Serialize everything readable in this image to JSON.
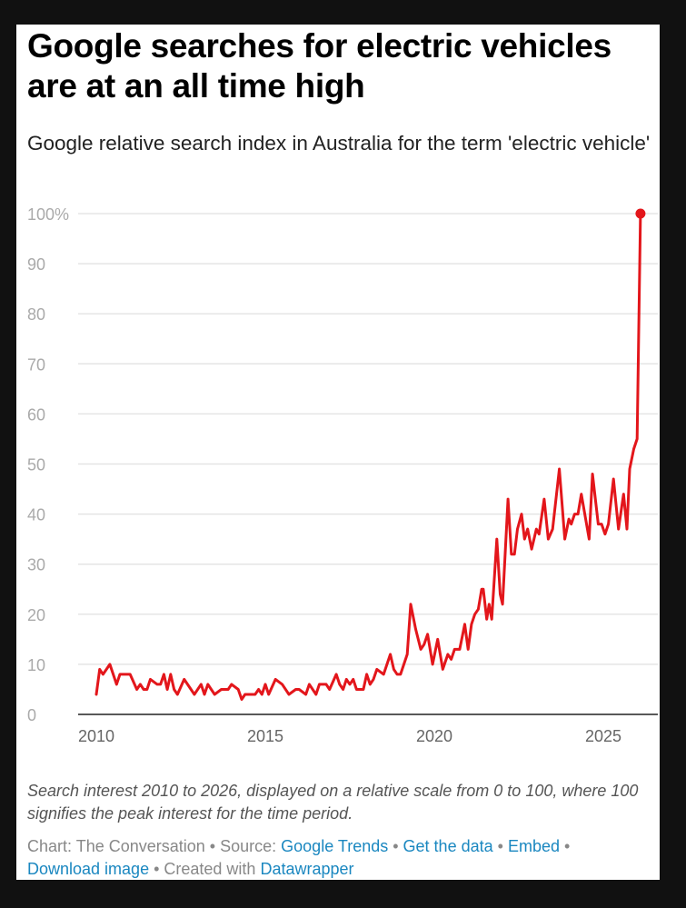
{
  "title": "Google searches for electric vehicles are at an all time high",
  "subtitle": "Google relative search index in Australia for the term 'electric vehicle'",
  "note": "Search interest 2010 to 2026, displayed on a relative scale from 0 to 100, where 100 signifies the peak interest for the time period.",
  "footer": {
    "chart_credit": "Chart: The Conversation",
    "source_label": "Source:",
    "source_link": "Google Trends",
    "get_data": "Get the data",
    "embed": "Embed",
    "download": "Download image",
    "created_with": "Created with",
    "datawrapper": "Datawrapper",
    "sep": " • "
  },
  "colors": {
    "line": "#e3161b",
    "grid": "#e5e5e5",
    "axis": "#222222",
    "tick": "#aaaaaa",
    "link": "#1a87c0"
  },
  "chart_data": {
    "type": "line",
    "title": "Google searches for electric vehicles are at an all time high",
    "xlabel": "",
    "ylabel": "",
    "xlim": [
      2010,
      2026.2
    ],
    "ylim": [
      0,
      100
    ],
    "y_ticks": [
      0,
      10,
      20,
      30,
      40,
      50,
      60,
      70,
      80,
      90,
      100
    ],
    "y_tick_labels": [
      "0",
      "10",
      "20",
      "30",
      "40",
      "50",
      "60",
      "70",
      "80",
      "90",
      "100%"
    ],
    "x_ticks": [
      2010,
      2015,
      2020,
      2025
    ],
    "x_tick_labels": [
      "2010",
      "2015",
      "2020",
      "2025"
    ],
    "grid": true,
    "series": [
      {
        "name": "electric vehicle",
        "points": [
          [
            2010.0,
            4
          ],
          [
            2010.1,
            9
          ],
          [
            2010.2,
            8
          ],
          [
            2010.4,
            10
          ],
          [
            2010.6,
            6
          ],
          [
            2010.7,
            8
          ],
          [
            2011.0,
            8
          ],
          [
            2011.2,
            5
          ],
          [
            2011.3,
            6
          ],
          [
            2011.4,
            5
          ],
          [
            2011.5,
            5
          ],
          [
            2011.6,
            7
          ],
          [
            2011.8,
            6
          ],
          [
            2011.9,
            6
          ],
          [
            2012.0,
            8
          ],
          [
            2012.1,
            5
          ],
          [
            2012.2,
            8
          ],
          [
            2012.3,
            5
          ],
          [
            2012.4,
            4
          ],
          [
            2012.6,
            7
          ],
          [
            2012.8,
            5
          ],
          [
            2012.9,
            4
          ],
          [
            2013.1,
            6
          ],
          [
            2013.2,
            4
          ],
          [
            2013.3,
            6
          ],
          [
            2013.4,
            5
          ],
          [
            2013.5,
            4
          ],
          [
            2013.7,
            5
          ],
          [
            2013.9,
            5
          ],
          [
            2014.0,
            6
          ],
          [
            2014.2,
            5
          ],
          [
            2014.3,
            3
          ],
          [
            2014.4,
            4
          ],
          [
            2014.7,
            4
          ],
          [
            2014.8,
            5
          ],
          [
            2014.9,
            4
          ],
          [
            2015.0,
            6
          ],
          [
            2015.1,
            4
          ],
          [
            2015.3,
            7
          ],
          [
            2015.5,
            6
          ],
          [
            2015.7,
            4
          ],
          [
            2015.9,
            5
          ],
          [
            2016.0,
            5
          ],
          [
            2016.2,
            4
          ],
          [
            2016.3,
            6
          ],
          [
            2016.5,
            4
          ],
          [
            2016.6,
            6
          ],
          [
            2016.8,
            6
          ],
          [
            2016.9,
            5
          ],
          [
            2017.1,
            8
          ],
          [
            2017.2,
            6
          ],
          [
            2017.3,
            5
          ],
          [
            2017.4,
            7
          ],
          [
            2017.5,
            6
          ],
          [
            2017.6,
            7
          ],
          [
            2017.7,
            5
          ],
          [
            2017.9,
            5
          ],
          [
            2018.0,
            8
          ],
          [
            2018.1,
            6
          ],
          [
            2018.2,
            7
          ],
          [
            2018.3,
            9
          ],
          [
            2018.5,
            8
          ],
          [
            2018.6,
            10
          ],
          [
            2018.7,
            12
          ],
          [
            2018.8,
            9
          ],
          [
            2018.9,
            8
          ],
          [
            2019.0,
            8
          ],
          [
            2019.1,
            10
          ],
          [
            2019.2,
            12
          ],
          [
            2019.3,
            22
          ],
          [
            2019.45,
            17
          ],
          [
            2019.6,
            13
          ],
          [
            2019.7,
            14
          ],
          [
            2019.8,
            16
          ],
          [
            2019.95,
            10
          ],
          [
            2020.1,
            15
          ],
          [
            2020.25,
            9
          ],
          [
            2020.4,
            12
          ],
          [
            2020.5,
            11
          ],
          [
            2020.6,
            13
          ],
          [
            2020.75,
            13
          ],
          [
            2020.9,
            18
          ],
          [
            2021.0,
            13
          ],
          [
            2021.1,
            18
          ],
          [
            2021.2,
            20
          ],
          [
            2021.3,
            21
          ],
          [
            2021.4,
            25
          ],
          [
            2021.45,
            25
          ],
          [
            2021.55,
            19
          ],
          [
            2021.62,
            22
          ],
          [
            2021.7,
            19
          ],
          [
            2021.85,
            35
          ],
          [
            2021.95,
            24
          ],
          [
            2022.02,
            22
          ],
          [
            2022.18,
            43
          ],
          [
            2022.28,
            32
          ],
          [
            2022.37,
            32
          ],
          [
            2022.46,
            37
          ],
          [
            2022.58,
            40
          ],
          [
            2022.67,
            35
          ],
          [
            2022.76,
            37
          ],
          [
            2022.88,
            33
          ],
          [
            2023.02,
            37
          ],
          [
            2023.1,
            36
          ],
          [
            2023.25,
            43
          ],
          [
            2023.37,
            35
          ],
          [
            2023.5,
            37
          ],
          [
            2023.7,
            49
          ],
          [
            2023.86,
            35
          ],
          [
            2023.98,
            39
          ],
          [
            2024.05,
            38
          ],
          [
            2024.15,
            40
          ],
          [
            2024.25,
            40
          ],
          [
            2024.35,
            44
          ],
          [
            2024.58,
            35
          ],
          [
            2024.68,
            48
          ],
          [
            2024.85,
            38
          ],
          [
            2024.95,
            38
          ],
          [
            2025.05,
            36
          ],
          [
            2025.15,
            38
          ],
          [
            2025.3,
            47
          ],
          [
            2025.45,
            37
          ],
          [
            2025.6,
            44
          ],
          [
            2025.7,
            37
          ],
          [
            2025.78,
            49
          ],
          [
            2025.9,
            53
          ],
          [
            2026.0,
            55
          ],
          [
            2026.1,
            100
          ]
        ]
      }
    ],
    "annotations": [
      {
        "type": "endpoint-dot",
        "x": 2026.1,
        "y": 100
      }
    ]
  }
}
